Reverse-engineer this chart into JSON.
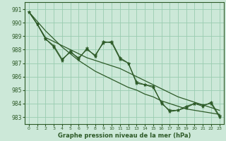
{
  "title": "Graphe pression niveau de la mer (hPa)",
  "bg_color": "#cce8d8",
  "grid_color": "#99ccb0",
  "line_color": "#2d5a27",
  "xlim": [
    -0.5,
    23.5
  ],
  "ylim": [
    982.5,
    991.5
  ],
  "yticks": [
    983,
    984,
    985,
    986,
    987,
    988,
    989,
    990,
    991
  ],
  "xtick_labels": [
    "0",
    "1",
    "2",
    "3",
    "4",
    "5",
    "6",
    "7",
    "8",
    "9",
    "10",
    "11",
    "12",
    "13",
    "14",
    "15",
    "16",
    "17",
    "18",
    "19",
    "20",
    "21",
    "22",
    "23"
  ],
  "series_smooth1": [
    990.8,
    989.9,
    988.9,
    988.6,
    988.3,
    988.0,
    987.7,
    987.4,
    987.2,
    987.0,
    986.8,
    986.6,
    986.3,
    986.0,
    985.7,
    985.4,
    985.1,
    984.8,
    984.5,
    984.3,
    984.1,
    983.9,
    983.7,
    983.5
  ],
  "series_smooth2": [
    990.8,
    990.1,
    989.4,
    988.8,
    988.2,
    987.7,
    987.2,
    986.8,
    986.4,
    986.1,
    985.8,
    985.5,
    985.2,
    985.0,
    984.7,
    984.5,
    984.2,
    984.0,
    983.8,
    983.6,
    983.5,
    983.4,
    983.3,
    983.2
  ],
  "series_zigzag1": [
    990.8,
    989.9,
    988.8,
    988.2,
    987.2,
    987.9,
    987.3,
    988.1,
    987.5,
    988.6,
    988.5,
    987.3,
    987.0,
    985.5,
    985.4,
    985.2,
    984.1,
    983.4,
    983.5,
    983.8,
    984.0,
    983.8,
    984.1,
    983.1
  ],
  "series_zigzag2": [
    990.8,
    989.9,
    988.8,
    988.3,
    987.3,
    987.8,
    987.4,
    988.0,
    987.6,
    988.5,
    988.6,
    987.4,
    987.0,
    985.6,
    985.4,
    985.3,
    984.0,
    983.5,
    983.5,
    983.7,
    984.0,
    983.9,
    984.0,
    983.0
  ],
  "marker_x": [
    0,
    1,
    2,
    3,
    4,
    5,
    6,
    7,
    8,
    9,
    10,
    11,
    12,
    13,
    14,
    15,
    16,
    17,
    18,
    19,
    20,
    21,
    22,
    23
  ],
  "marker_y": [
    990.8,
    989.9,
    988.8,
    988.2,
    987.2,
    987.9,
    987.3,
    988.1,
    987.5,
    988.6,
    988.5,
    987.3,
    987.0,
    985.5,
    985.4,
    985.2,
    984.1,
    983.4,
    983.5,
    983.8,
    984.0,
    983.8,
    984.1,
    983.1
  ]
}
